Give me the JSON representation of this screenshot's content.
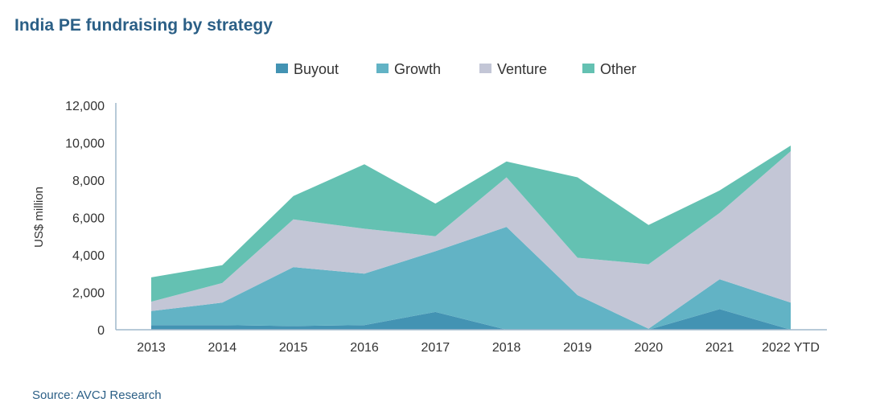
{
  "title": "India PE fundraising by strategy",
  "source": "Source: AVCJ Research",
  "chart_data": {
    "type": "area",
    "stacked": true,
    "title": "India PE fundraising by strategy",
    "xlabel": "",
    "ylabel": "US$ million",
    "ylim": [
      0,
      12000
    ],
    "yticks": [
      0,
      2000,
      4000,
      6000,
      8000,
      10000,
      12000
    ],
    "ytick_labels": [
      "0",
      "2,000",
      "4,000",
      "6,000",
      "8,000",
      "10,000",
      "12,000"
    ],
    "categories": [
      "2013",
      "2014",
      "2015",
      "2016",
      "2017",
      "2018",
      "2019",
      "2020",
      "2021",
      "2022 YTD"
    ],
    "legend_position": "top-center",
    "series": [
      {
        "name": "Buyout",
        "color": "#4393b3",
        "values": [
          250,
          250,
          200,
          250,
          950,
          0,
          0,
          0,
          1100,
          0
        ]
      },
      {
        "name": "Growth",
        "color": "#62b3c5",
        "values": [
          750,
          1200,
          3150,
          2750,
          3250,
          5500,
          1850,
          50,
          1600,
          1450
        ]
      },
      {
        "name": "Venture",
        "color": "#c3c6d6",
        "values": [
          500,
          1050,
          2550,
          2400,
          800,
          2650,
          2000,
          3450,
          3550,
          8100
        ]
      },
      {
        "name": "Other",
        "color": "#64c1b2",
        "values": [
          1300,
          950,
          1250,
          3450,
          1750,
          850,
          4300,
          2100,
          1200,
          300
        ]
      }
    ]
  }
}
